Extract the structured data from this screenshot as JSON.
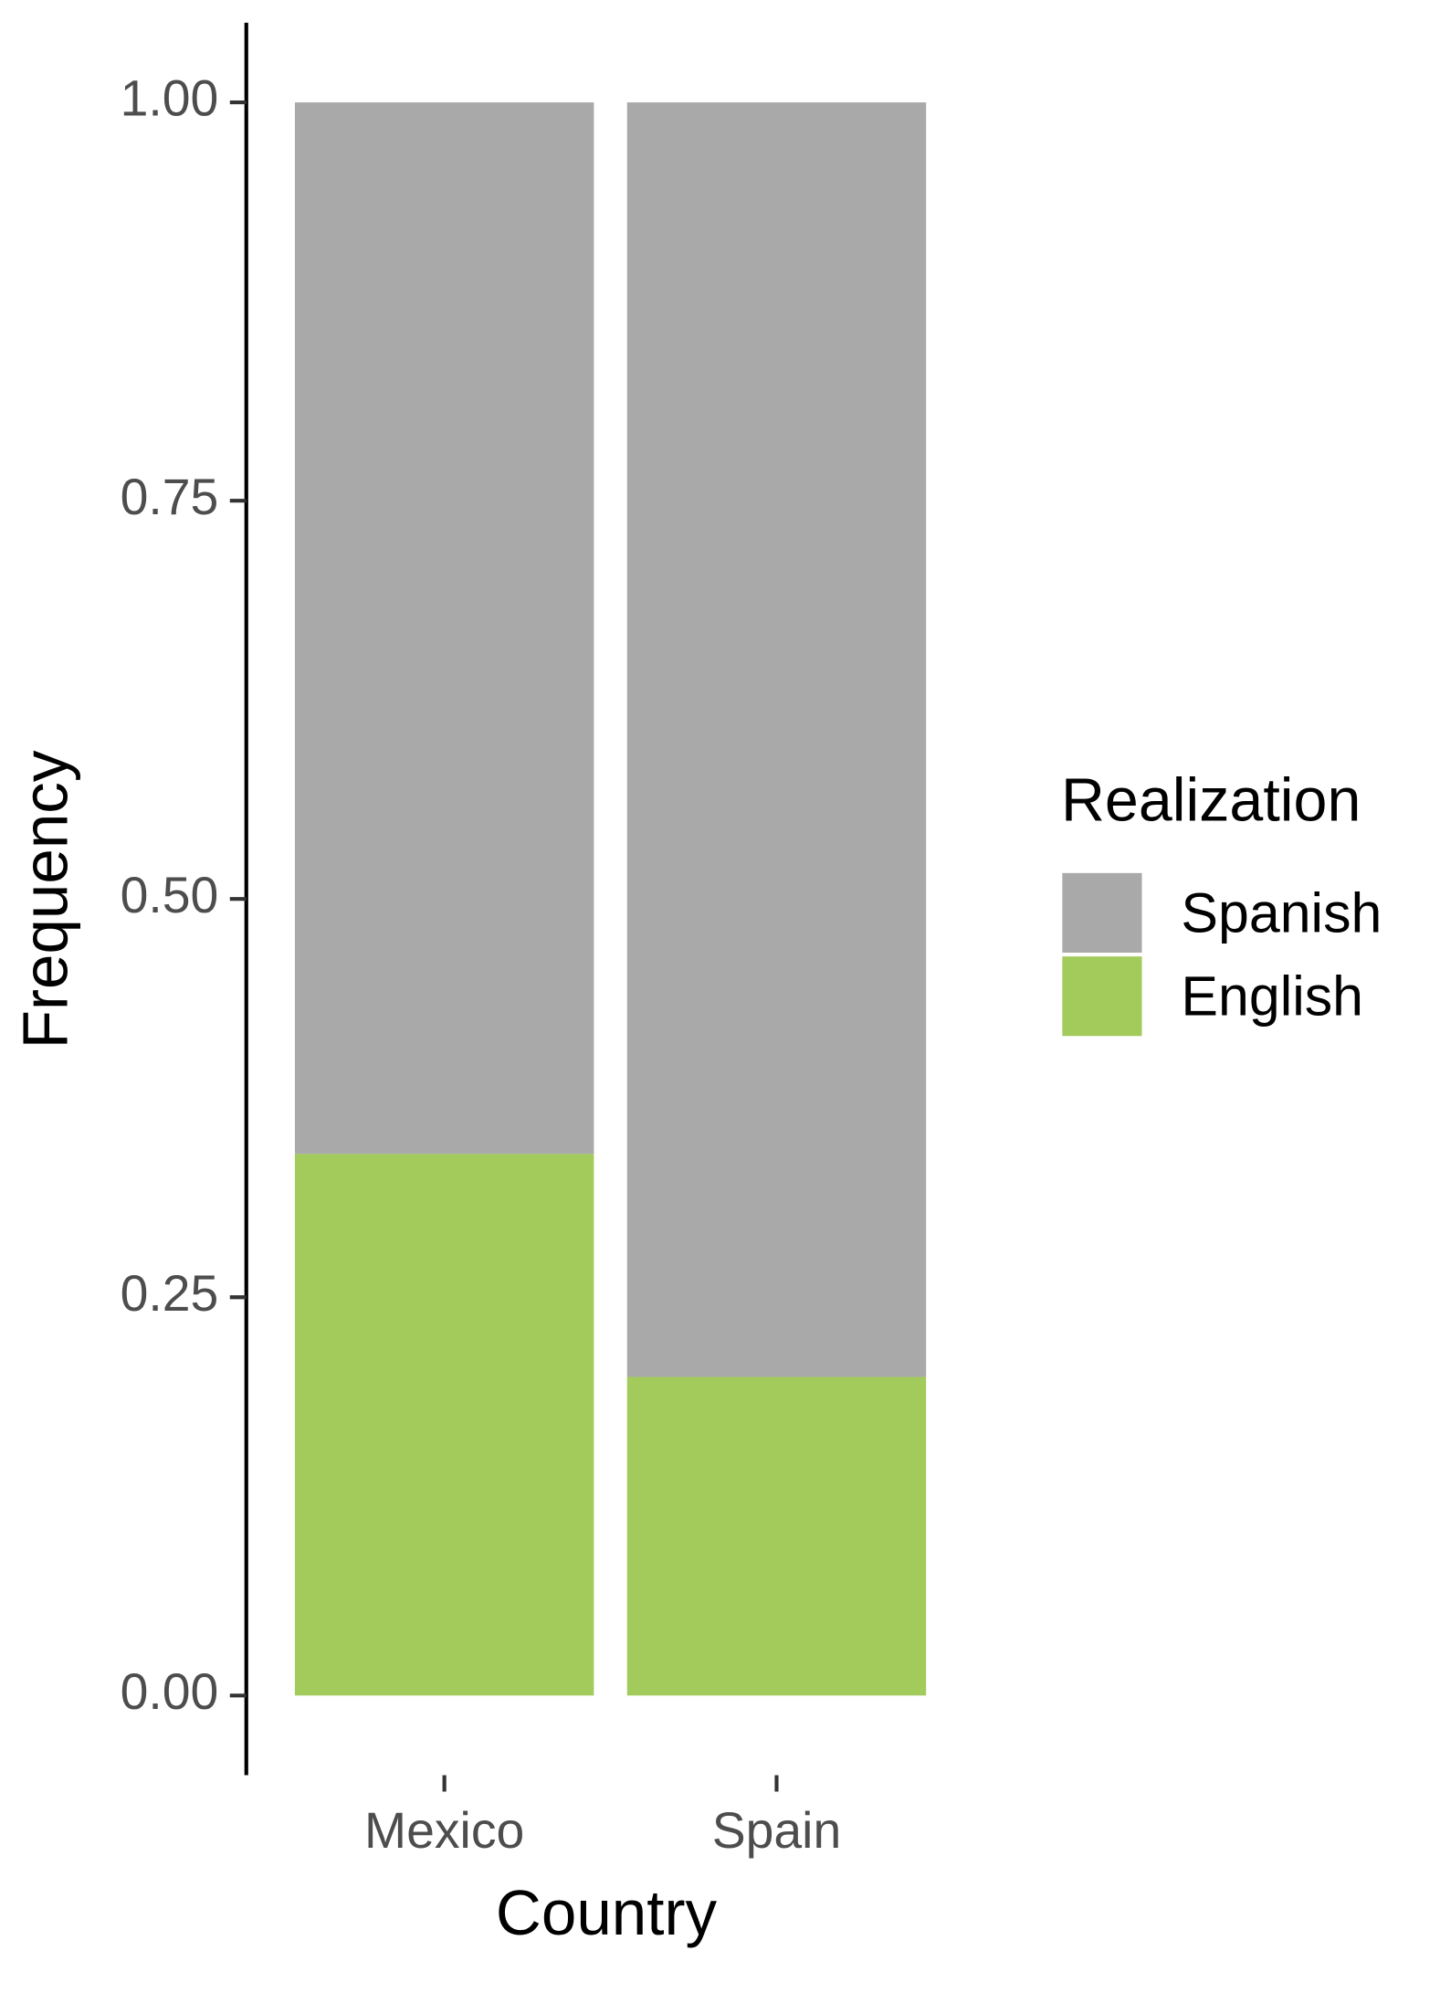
{
  "chart_data": {
    "type": "stacked_bar",
    "categories": [
      "Mexico",
      "Spain"
    ],
    "series": [
      {
        "name": "Spanish",
        "color": "#a9a9a9",
        "values": [
          0.66,
          0.8
        ]
      },
      {
        "name": "English",
        "color": "#a2cb5b",
        "values": [
          0.34,
          0.2
        ]
      }
    ],
    "x_label": "Country",
    "y_label": "Frequency",
    "legend_title": "Realization",
    "legend": "right",
    "ylim": [
      -0.05,
      1.05
    ],
    "yticks": [
      {
        "value": 0,
        "label": "0.00"
      },
      {
        "value": 0.25,
        "label": "0.25"
      },
      {
        "value": 0.5,
        "label": "0.50"
      },
      {
        "value": 0.75,
        "label": "0.75"
      },
      {
        "value": 1,
        "label": "1.00"
      }
    ],
    "grid": false
  }
}
